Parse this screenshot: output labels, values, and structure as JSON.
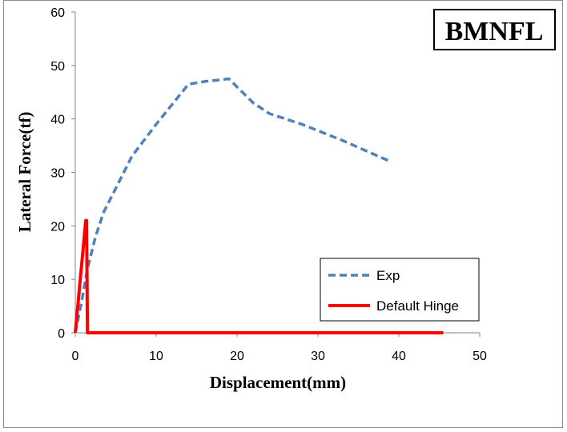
{
  "chart_data": {
    "type": "line",
    "title": "",
    "badge": "BMNFL",
    "xlabel": "Displacement(mm)",
    "ylabel": "Lateral Force(tf)",
    "xlim": [
      0,
      50
    ],
    "ylim": [
      0,
      60
    ],
    "xticks": [
      0,
      10,
      20,
      30,
      40,
      50
    ],
    "yticks": [
      0,
      10,
      20,
      30,
      40,
      50,
      60
    ],
    "grid": false,
    "legend_position": "lower-right",
    "series": [
      {
        "name": "Exp",
        "color": "#4f81bd",
        "style": "dashed",
        "x": [
          0,
          0.8,
          1.5,
          2.5,
          3.5,
          5,
          7,
          10,
          14,
          16,
          19,
          20,
          22,
          24,
          28,
          33,
          39
        ],
        "y": [
          0,
          6,
          12,
          18,
          22.5,
          27,
          33,
          39,
          46.5,
          47,
          47.5,
          46,
          43,
          41,
          39,
          36,
          32
        ]
      },
      {
        "name": "Default Hinge",
        "color": "#ff0000",
        "style": "solid",
        "x": [
          0,
          1.3,
          1.4,
          1.5,
          2,
          45.5
        ],
        "y": [
          0,
          21,
          21,
          0,
          0,
          0
        ]
      }
    ]
  }
}
